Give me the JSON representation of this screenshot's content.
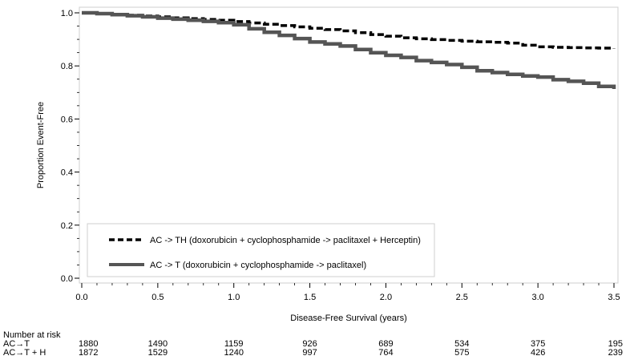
{
  "chart_data": {
    "type": "line",
    "title": "",
    "xlabel": "Disease-Free Survival (years)",
    "ylabel": "Proportion Event-Free",
    "xlim": [
      0,
      3.5
    ],
    "ylim": [
      0,
      1
    ],
    "x_ticks": [
      0.0,
      0.5,
      1.0,
      1.5,
      2.0,
      2.5,
      3.0,
      3.5
    ],
    "x_tick_labels": [
      "0.0",
      "0.5",
      "1.0",
      "1.5",
      "2.0",
      "2.5",
      "3.0",
      "3.5"
    ],
    "y_ticks": [
      0.0,
      0.2,
      0.4,
      0.6,
      0.8,
      1.0
    ],
    "y_tick_labels": [
      "0.0",
      "0.2",
      "0.4",
      "0.6",
      "0.8",
      "1.0"
    ],
    "grid": false,
    "legend_position": "bottom-left",
    "series": [
      {
        "name": "AC -> TH (doxorubicin + cyclophosphamide -> paclitaxel + Herceptin)",
        "style": "dashed",
        "color": "#000000",
        "points": [
          [
            0.0,
            1.0
          ],
          [
            0.1,
            0.998
          ],
          [
            0.2,
            0.994
          ],
          [
            0.3,
            0.991
          ],
          [
            0.4,
            0.988
          ],
          [
            0.5,
            0.985
          ],
          [
            0.6,
            0.981
          ],
          [
            0.7,
            0.978
          ],
          [
            0.8,
            0.975
          ],
          [
            0.9,
            0.972
          ],
          [
            1.0,
            0.967
          ],
          [
            1.1,
            0.962
          ],
          [
            1.2,
            0.957
          ],
          [
            1.3,
            0.952
          ],
          [
            1.4,
            0.947
          ],
          [
            1.5,
            0.942
          ],
          [
            1.6,
            0.937
          ],
          [
            1.7,
            0.932
          ],
          [
            1.8,
            0.925
          ],
          [
            1.9,
            0.918
          ],
          [
            2.0,
            0.912
          ],
          [
            2.1,
            0.906
          ],
          [
            2.2,
            0.902
          ],
          [
            2.3,
            0.899
          ],
          [
            2.4,
            0.896
          ],
          [
            2.5,
            0.893
          ],
          [
            2.6,
            0.891
          ],
          [
            2.7,
            0.889
          ],
          [
            2.8,
            0.886
          ],
          [
            2.9,
            0.878
          ],
          [
            3.0,
            0.872
          ],
          [
            3.1,
            0.87
          ],
          [
            3.2,
            0.869
          ],
          [
            3.3,
            0.868
          ],
          [
            3.4,
            0.867
          ],
          [
            3.5,
            0.866
          ]
        ]
      },
      {
        "name": "AC -> T (doxorubicin + cyclophosphamide -> paclitaxel)",
        "style": "solid",
        "color": "#555555",
        "points": [
          [
            0.0,
            1.0
          ],
          [
            0.1,
            0.997
          ],
          [
            0.2,
            0.993
          ],
          [
            0.3,
            0.989
          ],
          [
            0.4,
            0.985
          ],
          [
            0.5,
            0.98
          ],
          [
            0.6,
            0.976
          ],
          [
            0.7,
            0.972
          ],
          [
            0.8,
            0.968
          ],
          [
            0.9,
            0.963
          ],
          [
            1.0,
            0.955
          ],
          [
            1.1,
            0.94
          ],
          [
            1.2,
            0.927
          ],
          [
            1.3,
            0.915
          ],
          [
            1.4,
            0.903
          ],
          [
            1.5,
            0.89
          ],
          [
            1.6,
            0.883
          ],
          [
            1.7,
            0.875
          ],
          [
            1.8,
            0.862
          ],
          [
            1.9,
            0.85
          ],
          [
            2.0,
            0.84
          ],
          [
            2.1,
            0.832
          ],
          [
            2.2,
            0.82
          ],
          [
            2.3,
            0.813
          ],
          [
            2.4,
            0.805
          ],
          [
            2.5,
            0.795
          ],
          [
            2.6,
            0.782
          ],
          [
            2.7,
            0.775
          ],
          [
            2.8,
            0.768
          ],
          [
            2.9,
            0.762
          ],
          [
            3.0,
            0.758
          ],
          [
            3.1,
            0.748
          ],
          [
            3.2,
            0.742
          ],
          [
            3.3,
            0.735
          ],
          [
            3.4,
            0.723
          ],
          [
            3.5,
            0.713
          ]
        ]
      }
    ],
    "legend": [
      "AC -> TH (doxorubicin + cyclophosphamide -> paclitaxel + Herceptin)",
      "AC -> T (doxorubicin + cyclophosphamide -> paclitaxel)"
    ],
    "risk_table": {
      "title": "Number at risk",
      "rows": [
        {
          "label": "AC→T",
          "values": [
            "1880",
            "1490",
            "1159",
            "926",
            "689",
            "534",
            "375",
            "195"
          ]
        },
        {
          "label": "AC→T + H",
          "values": [
            "1872",
            "1529",
            "1240",
            "997",
            "764",
            "575",
            "426",
            "239"
          ]
        }
      ]
    }
  }
}
